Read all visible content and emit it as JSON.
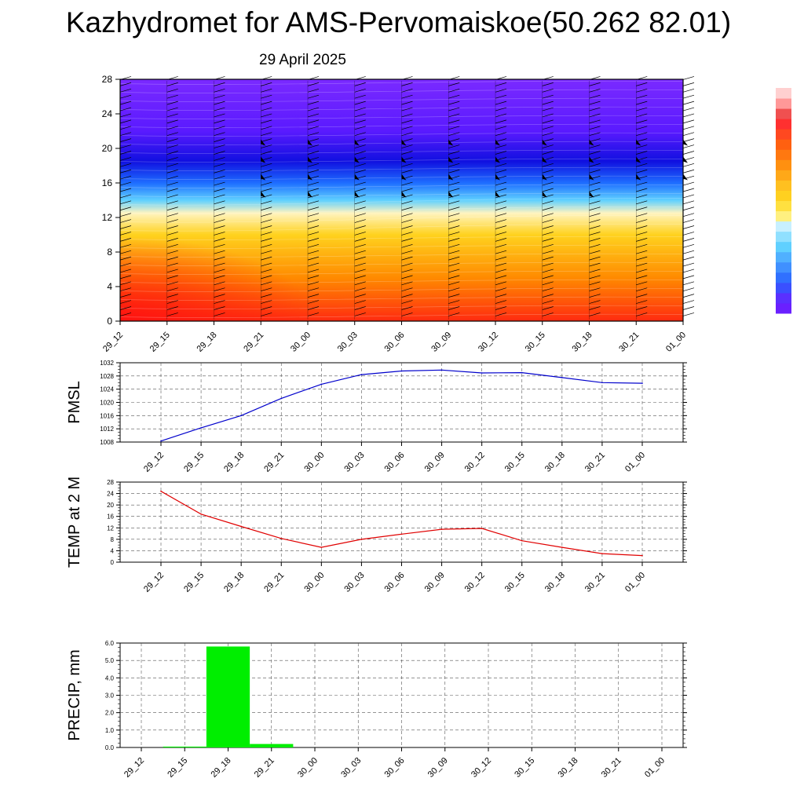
{
  "title": "Kazhydromet for AMS-Pervomaiskoe(50.262 82.01)",
  "subtitle": "29 April 2025",
  "time_labels": [
    "29_12",
    "29_15",
    "29_18",
    "29_21",
    "30_00",
    "30_03",
    "30_06",
    "30_09",
    "30_12",
    "30_15",
    "30_18",
    "30_21",
    "01_00"
  ],
  "colors": {
    "pmsl_line": "#0000cc",
    "temp_line": "#e00000",
    "precip_bar": "#00ee00",
    "colorbar_top": "#ff3030",
    "colorbar_bottom": "#6a20ff"
  },
  "chart_data": [
    {
      "type": "heatmap",
      "name": "height-time cross section",
      "xlabel": "",
      "ylabel": "",
      "x": [
        "29_12",
        "29_15",
        "29_18",
        "29_21",
        "30_00",
        "30_03",
        "30_06",
        "30_09",
        "30_12",
        "30_15",
        "30_18",
        "30_21",
        "01_00"
      ],
      "y_ticks": [
        0,
        4,
        8,
        12,
        16,
        20,
        24,
        28
      ],
      "ylim": [
        0,
        28
      ],
      "bands": [
        {
          "level": 0,
          "color": "#ff2a10"
        },
        {
          "level": 5,
          "color": "#ff8a00"
        },
        {
          "level": 10,
          "color": "#ffd21e"
        },
        {
          "level": 12.5,
          "color": "#fff4c0"
        },
        {
          "level": 14,
          "color": "#5fd0ff"
        },
        {
          "level": 16,
          "color": "#1e6dff"
        },
        {
          "level": 18.5,
          "color": "#1010e0"
        },
        {
          "level": 22,
          "color": "#5a1aff"
        },
        {
          "level": 28,
          "color": "#7a2aff"
        }
      ],
      "wind_barbs": true,
      "colorbar": true
    },
    {
      "type": "line",
      "ylabel": "PMSL",
      "x": [
        "29_12",
        "29_15",
        "29_18",
        "29_21",
        "30_00",
        "30_03",
        "30_06",
        "30_09",
        "30_12",
        "30_15",
        "30_18",
        "30_21",
        "01_00"
      ],
      "y_ticks": [
        1008,
        1012,
        1016,
        1020,
        1024,
        1028,
        1032
      ],
      "ylim": [
        1008,
        1032
      ],
      "values": [
        1008.3,
        1012.3,
        1016.0,
        1021.2,
        1025.5,
        1028.4,
        1029.5,
        1029.8,
        1028.9,
        1029.0,
        1027.5,
        1026.0,
        1025.8
      ],
      "grid": true
    },
    {
      "type": "line",
      "ylabel": "TEMP at 2 M",
      "x": [
        "29_12",
        "29_15",
        "29_18",
        "29_21",
        "30_00",
        "30_03",
        "30_06",
        "30_09",
        "30_12",
        "30_15",
        "30_18",
        "30_21",
        "01_00"
      ],
      "y_ticks": [
        0,
        4,
        8,
        12,
        16,
        20,
        24,
        28
      ],
      "ylim": [
        0,
        28
      ],
      "values": [
        24.8,
        16.8,
        12.5,
        8.3,
        5.2,
        8.0,
        9.8,
        11.5,
        11.8,
        7.5,
        5.2,
        3.0,
        2.3
      ],
      "grid": true
    },
    {
      "type": "bar",
      "ylabel": "PRECIP, mm",
      "categories": [
        "29_12",
        "29_15",
        "29_18",
        "29_21",
        "30_00",
        "30_03",
        "30_06",
        "30_09",
        "30_12",
        "30_15",
        "30_18",
        "30_21",
        "01_00"
      ],
      "y_ticks": [
        "0.0",
        "1.0",
        "2.0",
        "3.0",
        "4.0",
        "5.0",
        "6.0"
      ],
      "ylim": [
        0,
        6
      ],
      "values": [
        0,
        0.05,
        5.8,
        0.2,
        0,
        0,
        0,
        0,
        0,
        0,
        0,
        0,
        0
      ],
      "grid": true
    }
  ]
}
